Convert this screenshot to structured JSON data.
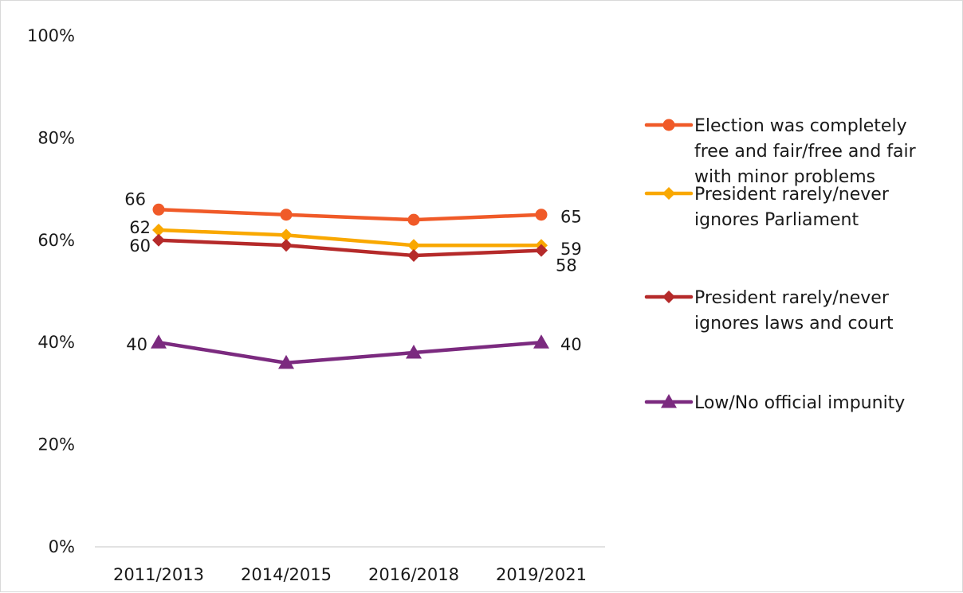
{
  "chart_data": {
    "type": "line",
    "title": "",
    "xlabel": "",
    "ylabel": "",
    "categories": [
      "2011/2013",
      "2014/2015",
      "2016/2018",
      "2019/2021"
    ],
    "ylim": [
      0,
      100
    ],
    "y_ticks": [
      0,
      20,
      40,
      60,
      80,
      100
    ],
    "y_tick_labels": [
      "0%",
      "20%",
      "40%",
      "60%",
      "80%",
      "100%"
    ],
    "grid": false,
    "legend_position": "right",
    "series": [
      {
        "name": "Election was completely free and fair/free and fair with minor problems",
        "legend_lines": [
          "Election was completely",
          "free and fair/free and fair",
          "with minor problems"
        ],
        "values": [
          66,
          65,
          64,
          65
        ],
        "labels": [
          "66",
          "",
          "",
          "65"
        ],
        "color": "#f05a28",
        "marker": "circle"
      },
      {
        "name": "President rarely/never ignores Parliament",
        "legend_lines": [
          "President rarely/never",
          "ignores Parliament"
        ],
        "values": [
          62,
          61,
          59,
          59
        ],
        "labels": [
          "62",
          "",
          "",
          "59"
        ],
        "color": "#f9a800",
        "marker": "diamond"
      },
      {
        "name": "President rarely/never ignores laws and court",
        "legend_lines": [
          "President rarely/never",
          "ignores laws and court"
        ],
        "values": [
          60,
          59,
          57,
          58
        ],
        "labels": [
          "60",
          "",
          "",
          "58"
        ],
        "color": "#b52a2a",
        "marker": "diamond"
      },
      {
        "name": "Low/No official impunity",
        "legend_lines": [
          "Low/No official impunity"
        ],
        "values": [
          40,
          36,
          38,
          40
        ],
        "labels": [
          "40",
          "",
          "",
          "40"
        ],
        "color": "#7b2a7f",
        "marker": "triangle"
      }
    ]
  }
}
